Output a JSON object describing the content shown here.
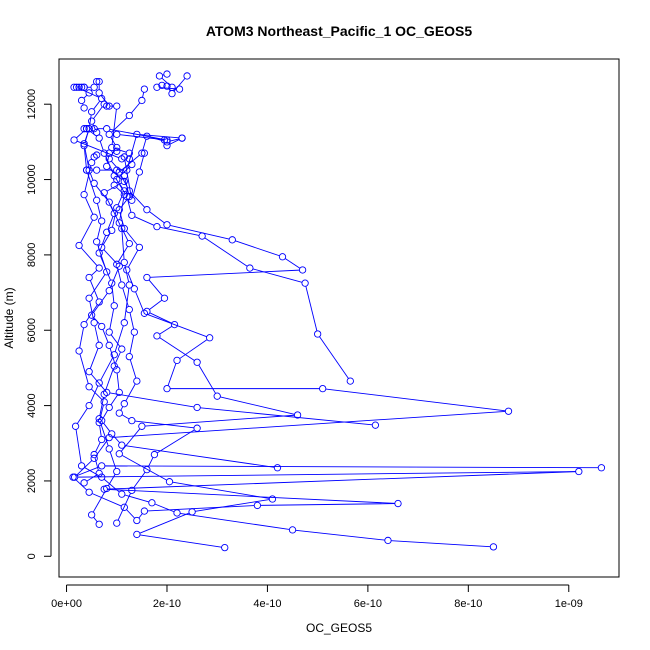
{
  "chart_data": {
    "type": "line",
    "title": "ATOM3 Northeast_Pacific_1 OC_GEOS5",
    "xlabel": "OC_GEOS5",
    "ylabel": "Altitude (m)",
    "xlim": [
      -1.5e-11,
      1.1e-09
    ],
    "ylim": [
      -550,
      13200
    ],
    "xticks": [
      0,
      2e-10,
      4e-10,
      6e-10,
      8e-10,
      1e-09
    ],
    "xtick_labels": [
      "0e+00",
      "2e-10",
      "4e-10",
      "6e-10",
      "8e-10",
      "1e-09"
    ],
    "yticks": [
      0,
      2000,
      4000,
      6000,
      8000,
      10000,
      12000
    ],
    "ytick_labels": [
      "0",
      "2000",
      "4000",
      "6000",
      "8000",
      "10000",
      "12000"
    ],
    "grid": false,
    "legend": "none",
    "color": "#0000ff",
    "marker": "open-circle",
    "series": [
      {
        "points": [
          [
            3.15e-10,
            230
          ],
          [
            1.4e-10,
            580
          ],
          [
            2.5e-10,
            1180
          ],
          [
            4.1e-10,
            1520
          ],
          [
            2.05e-10,
            1980
          ],
          [
            1.05e-10,
            2720
          ],
          [
            1.5e-10,
            3450
          ],
          [
            4.6e-10,
            3750
          ],
          [
            3e-10,
            4250
          ],
          [
            2.6e-10,
            5150
          ],
          [
            1.8e-10,
            5850
          ],
          [
            2.15e-10,
            6150
          ],
          [
            1.6e-10,
            6500
          ],
          [
            1.95e-10,
            6850
          ],
          [
            1.6e-10,
            7400
          ],
          [
            4.7e-10,
            7600
          ],
          [
            4.3e-10,
            7950
          ],
          [
            3.3e-10,
            8400
          ],
          [
            2e-10,
            8800
          ],
          [
            1.6e-10,
            9200
          ],
          [
            1.25e-10,
            9700
          ],
          [
            1.05e-10,
            10200
          ],
          [
            1.5e-10,
            10700
          ],
          [
            1.6e-10,
            11150
          ],
          [
            2e-10,
            11000
          ],
          [
            2.3e-10,
            11100
          ],
          [
            2e-10,
            10900
          ],
          [
            1.95e-10,
            11050
          ]
        ]
      },
      {
        "points": [
          [
            8.5e-10,
            250
          ],
          [
            6.4e-10,
            420
          ],
          [
            4.5e-10,
            700
          ],
          [
            2.2e-10,
            1150
          ],
          [
            1.7e-10,
            1420
          ],
          [
            1.1e-10,
            1650
          ],
          [
            7e-11,
            2100
          ],
          [
            3e-11,
            2400
          ],
          [
            1.8e-11,
            3450
          ],
          [
            4.5e-11,
            4000
          ],
          [
            6.5e-11,
            4600
          ],
          [
            9.5e-11,
            5350
          ],
          [
            1.15e-10,
            6200
          ],
          [
            1.25e-10,
            7200
          ],
          [
            1.15e-10,
            7800
          ],
          [
            1.1e-10,
            8700
          ],
          [
            8.5e-11,
            9400
          ],
          [
            5.5e-11,
            9900
          ],
          [
            4.5e-11,
            10250
          ],
          [
            3.5e-11,
            10950
          ],
          [
            4.5e-11,
            11350
          ],
          [
            6e-11,
            11250
          ],
          [
            5e-11,
            11550
          ],
          [
            7.5e-11,
            12000
          ],
          [
            8.5e-11,
            11950
          ],
          [
            6.5e-11,
            12300
          ],
          [
            6.5e-11,
            12600
          ],
          [
            6e-11,
            12600
          ]
        ]
      },
      {
        "points": [
          [
            1.065e-09,
            2350
          ],
          [
            7e-11,
            2400
          ],
          [
            1.3e-11,
            2100
          ],
          [
            4.5e-11,
            1700
          ],
          [
            1.15e-10,
            1300
          ],
          [
            1.4e-10,
            950
          ],
          [
            1.55e-10,
            1200
          ],
          [
            3.8e-10,
            1350
          ],
          [
            6.6e-10,
            1400
          ],
          [
            7.5e-11,
            1780
          ],
          [
            1.02e-09,
            2250
          ],
          [
            1.6e-11,
            2100
          ],
          [
            5.5e-11,
            2600
          ],
          [
            8.5e-11,
            3150
          ],
          [
            8.8e-10,
            3850
          ],
          [
            5.1e-10,
            4450
          ],
          [
            2e-10,
            4450
          ],
          [
            2.2e-10,
            5200
          ],
          [
            2.85e-10,
            5800
          ],
          [
            1.55e-10,
            6450
          ],
          [
            1.35e-10,
            7100
          ],
          [
            1.2e-10,
            7600
          ],
          [
            1.45e-10,
            8200
          ],
          [
            1.15e-10,
            8700
          ],
          [
            1.05e-10,
            9200
          ],
          [
            1.25e-10,
            9550
          ],
          [
            1.15e-10,
            10100
          ],
          [
            8.5e-11,
            10550
          ],
          [
            1e-10,
            10850
          ],
          [
            8.5e-11,
            11200
          ],
          [
            1.25e-10,
            11700
          ],
          [
            1.5e-10,
            12100
          ],
          [
            1.55e-10,
            12400
          ]
        ]
      },
      {
        "points": [
          [
            6.15e-10,
            3480
          ],
          [
            2.6e-10,
            3950
          ],
          [
            8e-11,
            4350
          ],
          [
            4.5e-11,
            4900
          ],
          [
            6.5e-11,
            5600
          ],
          [
            5.5e-11,
            6200
          ],
          [
            4.5e-11,
            6850
          ],
          [
            8e-11,
            7550
          ],
          [
            6e-11,
            8350
          ],
          [
            7e-11,
            8900
          ],
          [
            6e-11,
            9450
          ],
          [
            4e-11,
            10250
          ],
          [
            3.5e-11,
            10900
          ],
          [
            4.5e-11,
            11350
          ],
          [
            5e-11,
            11800
          ],
          [
            7e-11,
            12150
          ],
          [
            2e-11,
            12450
          ]
        ]
      },
      {
        "points": [
          [
            6.5e-11,
            850
          ],
          [
            5e-11,
            1100
          ],
          [
            8e-11,
            1800
          ],
          [
            1e-10,
            2250
          ],
          [
            8.5e-11,
            2850
          ],
          [
            6.5e-11,
            3650
          ],
          [
            7.5e-11,
            4300
          ],
          [
            9.5e-11,
            5050
          ],
          [
            1.1e-10,
            5500
          ],
          [
            8.5e-11,
            5950
          ],
          [
            9.5e-11,
            6650
          ],
          [
            9e-11,
            7250
          ],
          [
            6.5e-11,
            8050
          ],
          [
            8e-11,
            8600
          ],
          [
            9.5e-11,
            9100
          ],
          [
            7.5e-11,
            9650
          ],
          [
            1.15e-10,
            9950
          ],
          [
            8e-11,
            10350
          ],
          [
            8.5e-11,
            10700
          ],
          [
            1e-10,
            10750
          ]
        ]
      },
      {
        "points": [
          [
            5.65e-10,
            4650
          ],
          [
            5e-10,
            5900
          ],
          [
            4.75e-10,
            7250
          ],
          [
            3.65e-10,
            7650
          ],
          [
            2.7e-10,
            8500
          ],
          [
            1.8e-10,
            8750
          ],
          [
            1.3e-10,
            9050
          ],
          [
            1.2e-10,
            9550
          ],
          [
            9.5e-11,
            10100
          ],
          [
            7.5e-11,
            10700
          ],
          [
            6.5e-11,
            11100
          ],
          [
            4e-11,
            11350
          ],
          [
            1.5e-11,
            11050
          ],
          [
            1.1e-10,
            10550
          ]
        ]
      },
      {
        "points": [
          [
            1e-10,
            880
          ],
          [
            1.3e-10,
            1750
          ],
          [
            1.6e-10,
            2300
          ],
          [
            1.75e-10,
            2700
          ],
          [
            2.6e-10,
            3400
          ],
          [
            1.3e-10,
            3600
          ],
          [
            1.05e-10,
            3800
          ],
          [
            1.15e-10,
            4050
          ],
          [
            1.4e-10,
            4650
          ],
          [
            1.25e-10,
            5300
          ],
          [
            1.35e-10,
            5950
          ],
          [
            1.25e-10,
            6550
          ],
          [
            1.1e-10,
            7200
          ],
          [
            1e-10,
            7750
          ],
          [
            1.25e-10,
            8300
          ],
          [
            1.05e-10,
            8850
          ],
          [
            1.15e-10,
            9600
          ],
          [
            9.5e-11,
            9850
          ]
        ]
      },
      {
        "points": [
          [
            4.2e-10,
            2350
          ],
          [
            1.1e-10,
            2950
          ],
          [
            9e-11,
            3250
          ],
          [
            7e-11,
            3600
          ],
          [
            8.5e-11,
            3950
          ],
          [
            1.05e-10,
            4350
          ],
          [
            1e-10,
            4950
          ],
          [
            8.5e-11,
            5600
          ],
          [
            7e-11,
            6100
          ],
          [
            5e-11,
            6400
          ],
          [
            8.5e-11,
            7050
          ],
          [
            1.05e-10,
            7700
          ],
          [
            7e-11,
            8200
          ],
          [
            9e-11,
            8650
          ],
          [
            1e-10,
            9250
          ],
          [
            1.15e-10,
            9700
          ],
          [
            1e-10,
            10000
          ],
          [
            1.3e-10,
            10400
          ],
          [
            1.25e-10,
            10550
          ]
        ]
      },
      {
        "points": [
          [
            3.5e-11,
            1950
          ],
          [
            6.5e-11,
            2200
          ],
          [
            5.5e-11,
            2700
          ],
          [
            7e-11,
            3100
          ],
          [
            6.5e-11,
            3550
          ],
          [
            7.5e-11,
            4100
          ],
          [
            4.5e-11,
            4500
          ],
          [
            2.5e-11,
            5450
          ],
          [
            3.5e-11,
            6150
          ],
          [
            6.5e-11,
            6750
          ],
          [
            4.5e-11,
            7400
          ],
          [
            6.5e-11,
            7650
          ],
          [
            2.5e-11,
            8250
          ],
          [
            5.5e-11,
            9000
          ],
          [
            3.5e-11,
            9600
          ],
          [
            5e-11,
            10450
          ],
          [
            5.5e-11,
            10600
          ],
          [
            6e-11,
            10650
          ]
        ]
      },
      {
        "points": [
          [
            2e-10,
            12800
          ],
          [
            1.85e-10,
            12750
          ],
          [
            2.1e-10,
            12450
          ],
          [
            2.25e-10,
            12400
          ],
          [
            1.8e-10,
            12450
          ],
          [
            1.9e-10,
            12500
          ],
          [
            2e-10,
            12480
          ],
          [
            2.1e-10,
            12280
          ],
          [
            2.4e-10,
            12750
          ]
        ]
      },
      {
        "points": [
          [
            1.5e-11,
            12450
          ],
          [
            2.5e-11,
            12450
          ],
          [
            3.5e-11,
            12450
          ],
          [
            3e-11,
            12450
          ],
          [
            3.5e-11,
            12450
          ],
          [
            5.5e-11,
            12450
          ],
          [
            4.5e-11,
            12300
          ],
          [
            3e-11,
            12100
          ],
          [
            3.5e-11,
            11900
          ]
        ]
      },
      {
        "points": [
          [
            8e-11,
            11950
          ],
          [
            1e-10,
            11950
          ],
          [
            9e-11,
            10850
          ],
          [
            1.25e-10,
            10700
          ],
          [
            1.15e-10,
            10600
          ],
          [
            1.3e-10,
            9450
          ],
          [
            1.45e-10,
            10200
          ],
          [
            1.55e-10,
            10700
          ]
        ]
      },
      {
        "points": [
          [
            4e-11,
            10250
          ],
          [
            6e-11,
            10250
          ],
          [
            1e-10,
            10250
          ],
          [
            1.2e-10,
            10250
          ],
          [
            1.4e-10,
            11200
          ],
          [
            2.3e-10,
            11100
          ]
        ]
      },
      {
        "points": [
          [
            3.5e-11,
            11350
          ],
          [
            4e-11,
            11350
          ],
          [
            5.5e-11,
            11350
          ],
          [
            8e-11,
            11350
          ],
          [
            2e-10,
            11050
          ],
          [
            1e-10,
            11200
          ]
        ]
      }
    ]
  }
}
